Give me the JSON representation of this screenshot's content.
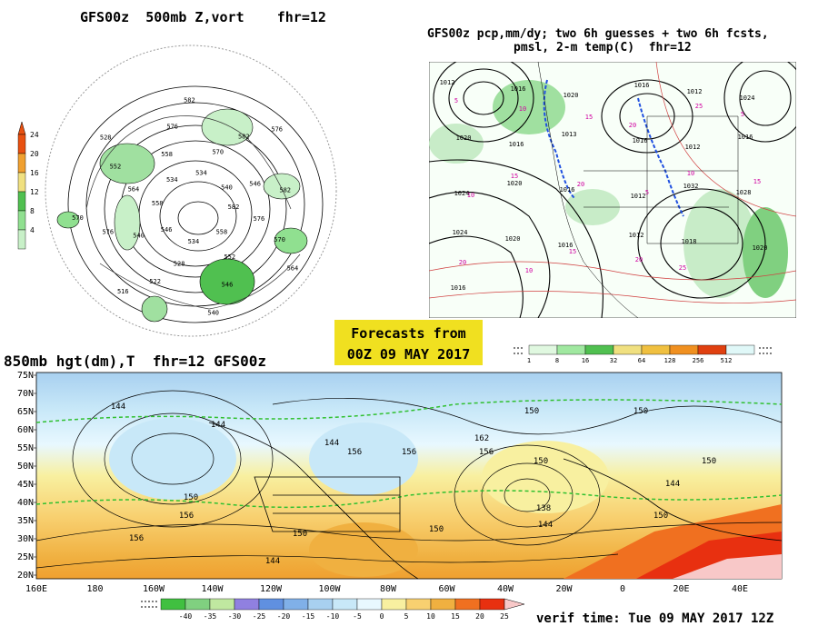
{
  "panel_500mb": {
    "title": "GFS00z  500mb Z,vort    fhr=12",
    "colorbar_ticks": [
      "24",
      "20",
      "16",
      "12",
      "8",
      "4"
    ],
    "colorbar_colors": [
      "#e85010",
      "#f0a030",
      "#f0e080",
      "#50c050",
      "#90e090",
      "#c8f0c8"
    ],
    "contour_labels": [
      "582",
      "576",
      "570",
      "564",
      "558",
      "552",
      "546",
      "540",
      "534",
      "528",
      "522",
      "516",
      "546",
      "540",
      "576",
      "570",
      "558",
      "564",
      "552",
      "528",
      "534",
      "558",
      "576",
      "582",
      "534",
      "570",
      "582",
      "576",
      "540",
      "546",
      "582"
    ]
  },
  "panel_precip": {
    "title_line1": "GFS00z pcp,mm/dy; two 6h guesses + two 6h fcsts,",
    "title_line2": "pmsl, 2-m temp(C)  fhr=12",
    "pressure_labels": [
      "1012",
      "1016",
      "1020",
      "1016",
      "1012",
      "1024",
      "1020",
      "1016",
      "1013",
      "1016",
      "1012",
      "1016",
      "1024",
      "1020",
      "1016",
      "1012",
      "1032",
      "1028",
      "1024",
      "1020",
      "1016",
      "1012",
      "1018",
      "1020",
      "1016"
    ],
    "temp_labels": [
      "5",
      "10",
      "15",
      "20",
      "25",
      "5",
      "10",
      "15",
      "20",
      "5",
      "10",
      "15",
      "20",
      "10",
      "15",
      "20",
      "25"
    ],
    "colorbar_ticks": [
      "1",
      "8",
      "16",
      "32",
      "64",
      "128",
      "256",
      "512"
    ],
    "colorbar_colors": [
      "#e0f8e0",
      "#a0e8a0",
      "#50c050",
      "#f0e080",
      "#f0c040",
      "#f09020",
      "#e04010",
      "#e0f8f8"
    ]
  },
  "forecast_box": {
    "line1": "Forecasts from",
    "line2": "00Z 09 MAY 2017"
  },
  "panel_850mb": {
    "title": "850mb hgt(dm),T  fhr=12 GFS00z",
    "lat_labels": [
      "75N",
      "70N",
      "65N",
      "60N",
      "55N",
      "50N",
      "45N",
      "40N",
      "35N",
      "30N",
      "25N",
      "20N"
    ],
    "lon_labels": [
      "160E",
      "180",
      "160W",
      "140W",
      "120W",
      "100W",
      "80W",
      "60W",
      "40W",
      "20W",
      "0",
      "20E",
      "40E"
    ],
    "height_labels": [
      "144",
      "150",
      "156",
      "144",
      "150",
      "156",
      "144",
      "150",
      "156",
      "162",
      "156",
      "150",
      "150",
      "138",
      "144",
      "150",
      "144",
      "150",
      "156",
      "144",
      "150"
    ],
    "colorbar_ticks": [
      "-40",
      "-35",
      "-30",
      "-25",
      "-20",
      "-15",
      "-10",
      "-5",
      "0",
      "5",
      "10",
      "15",
      "20",
      "25"
    ],
    "colorbar_colors": [
      "#40c040",
      "#80d080",
      "#c0e8a0",
      "#9080e0",
      "#6090e0",
      "#80b0e8",
      "#a8d0f0",
      "#c8e8f8",
      "#e8f8ff",
      "#f8f0a0",
      "#f8d070",
      "#f0b040",
      "#f07020",
      "#e83010"
    ]
  },
  "verif_time": "verif time: Tue 09 MAY 2017 12Z"
}
